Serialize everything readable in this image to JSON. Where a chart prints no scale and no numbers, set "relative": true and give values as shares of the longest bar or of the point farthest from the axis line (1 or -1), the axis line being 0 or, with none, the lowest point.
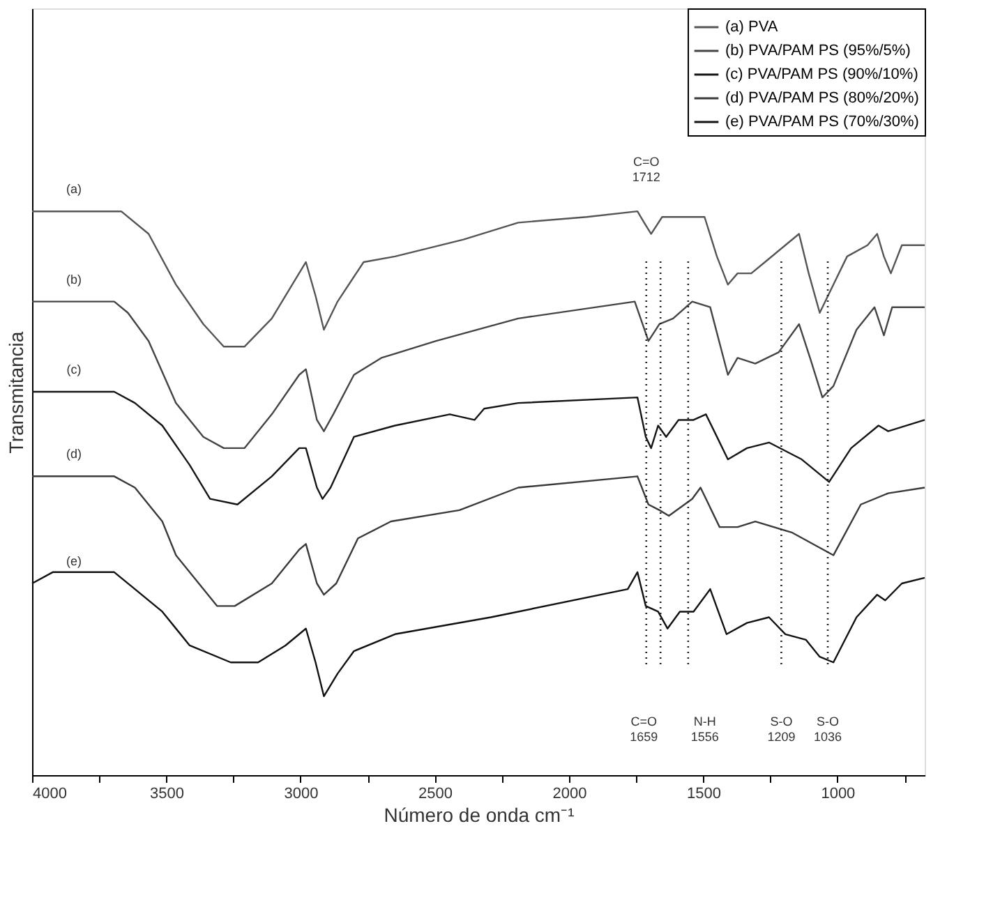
{
  "chart_data": {
    "type": "line",
    "relative": true,
    "xlabel": "Número de onda cm⁻¹",
    "ylabel": "Transmitancia",
    "xlim": [
      4000,
      675
    ],
    "xticks": [
      4000,
      {
        "value": 3750,
        "label": null
      },
      3500,
      {
        "value": 3250,
        "label": null
      },
      3000,
      {
        "value": 2750,
        "label": null
      },
      2500,
      {
        "value": 2250,
        "label": null
      },
      2000,
      {
        "value": 1750,
        "label": null
      },
      1500,
      {
        "value": 1250,
        "label": null
      },
      1000,
      {
        "value": 750,
        "label": null
      }
    ],
    "grid": false,
    "legend": "top right",
    "marker": "none",
    "line_style": "solid",
    "series": [
      {
        "name": "(a) PVA",
        "color": "#555555",
        "x": [
          4000,
          3668,
          3566,
          3464,
          3362,
          3286,
          3209,
          3107,
          3031,
          2980,
          2944,
          2913,
          2862,
          2765,
          2648,
          2393,
          2189,
          1934,
          1745,
          1720,
          1694,
          1653,
          1526,
          1495,
          1449,
          1408,
          1372,
          1321,
          1270,
          1194,
          1143,
          1107,
          1066,
          1015,
          964,
          888,
          852,
          827,
          801,
          760,
          675
        ],
        "values": [
          1.0,
          1.0,
          0.96,
          0.87,
          0.8,
          0.76,
          0.76,
          0.81,
          0.87,
          0.91,
          0.85,
          0.79,
          0.84,
          0.91,
          0.92,
          0.95,
          0.98,
          0.99,
          1.0,
          0.98,
          0.96,
          0.99,
          0.99,
          0.99,
          0.92,
          0.87,
          0.89,
          0.89,
          0.91,
          0.94,
          0.96,
          0.89,
          0.82,
          0.87,
          0.92,
          0.94,
          0.96,
          0.92,
          0.89,
          0.94,
          0.94
        ]
      },
      {
        "name": "(b) PVA/PAM PS (95%/5%)",
        "color": "#444444",
        "x": [
          4000,
          3694,
          3643,
          3566,
          3464,
          3362,
          3286,
          3209,
          3107,
          3005,
          2980,
          2939,
          2913,
          2878,
          2801,
          2699,
          2495,
          2189,
          1755,
          1704,
          1663,
          1612,
          1541,
          1474,
          1408,
          1372,
          1306,
          1219,
          1143,
          1102,
          1056,
          1015,
          929,
          862,
          827,
          796,
          675
        ],
        "values": [
          0.84,
          0.84,
          0.82,
          0.77,
          0.66,
          0.6,
          0.58,
          0.58,
          0.64,
          0.71,
          0.72,
          0.63,
          0.61,
          0.64,
          0.71,
          0.74,
          0.77,
          0.81,
          0.84,
          0.77,
          0.8,
          0.81,
          0.84,
          0.83,
          0.71,
          0.74,
          0.73,
          0.75,
          0.8,
          0.74,
          0.67,
          0.69,
          0.79,
          0.83,
          0.78,
          0.83,
          0.83
        ]
      },
      {
        "name": "(c) PVA/PAM PS (90%/10%)",
        "color": "#151515",
        "x": [
          4000,
          3857,
          3694,
          3617,
          3515,
          3413,
          3337,
          3235,
          3107,
          3005,
          2980,
          2939,
          2918,
          2888,
          2801,
          2648,
          2444,
          2352,
          2316,
          2189,
          1745,
          1714,
          1694,
          1668,
          1638,
          1592,
          1536,
          1490,
          1459,
          1408,
          1337,
          1255,
          1133,
          1031,
          949,
          847,
          811,
          675
        ],
        "values": [
          0.68,
          0.68,
          0.68,
          0.66,
          0.62,
          0.55,
          0.49,
          0.48,
          0.53,
          0.58,
          0.58,
          0.51,
          0.49,
          0.51,
          0.6,
          0.62,
          0.64,
          0.63,
          0.65,
          0.66,
          0.67,
          0.6,
          0.58,
          0.62,
          0.6,
          0.63,
          0.63,
          0.64,
          0.61,
          0.56,
          0.58,
          0.59,
          0.56,
          0.52,
          0.58,
          0.62,
          0.61,
          0.63
        ]
      },
      {
        "name": "(d) PVA/PAM PS (80%/20%)",
        "color": "#3a3a3a",
        "x": [
          4000,
          3694,
          3617,
          3515,
          3464,
          3311,
          3245,
          3107,
          3005,
          2980,
          2939,
          2913,
          2867,
          2786,
          2663,
          2408,
          2189,
          1745,
          1704,
          1663,
          1628,
          1541,
          1510,
          1439,
          1372,
          1306,
          1168,
          1015,
          913,
          811,
          675
        ],
        "values": [
          0.53,
          0.53,
          0.51,
          0.45,
          0.39,
          0.3,
          0.3,
          0.34,
          0.4,
          0.41,
          0.34,
          0.32,
          0.34,
          0.42,
          0.45,
          0.47,
          0.51,
          0.53,
          0.48,
          0.47,
          0.46,
          0.49,
          0.51,
          0.44,
          0.44,
          0.45,
          0.43,
          0.39,
          0.48,
          0.5,
          0.51
        ]
      },
      {
        "name": "(e) PVA/PAM PS (70%/30%)",
        "color": "#111111",
        "x": [
          4000,
          3923,
          3694,
          3617,
          3515,
          3413,
          3260,
          3158,
          3056,
          2980,
          2944,
          2913,
          2862,
          2801,
          2648,
          2291,
          1781,
          1745,
          1714,
          1668,
          1633,
          1587,
          1536,
          1474,
          1413,
          1337,
          1255,
          1194,
          1117,
          1066,
          1015,
          929,
          852,
          822,
          760,
          675
        ],
        "values": [
          0.34,
          0.36,
          0.36,
          0.33,
          0.29,
          0.23,
          0.2,
          0.2,
          0.23,
          0.26,
          0.2,
          0.14,
          0.18,
          0.22,
          0.25,
          0.28,
          0.33,
          0.36,
          0.3,
          0.29,
          0.26,
          0.29,
          0.29,
          0.33,
          0.25,
          0.27,
          0.28,
          0.25,
          0.24,
          0.21,
          0.2,
          0.28,
          0.32,
          0.31,
          0.34,
          0.35
        ]
      }
    ],
    "ref_lines": [
      {
        "axis": "x",
        "value": 1712,
        "line_style": "dotted",
        "color": "#222222"
      },
      {
        "axis": "x",
        "value": 1659,
        "line_style": "dotted",
        "color": "#222222"
      },
      {
        "axis": "x",
        "value": 1556,
        "line_style": "dotted",
        "color": "#222222"
      },
      {
        "axis": "x",
        "value": 1209,
        "line_style": "dotted",
        "color": "#222222"
      },
      {
        "axis": "x",
        "value": 1036,
        "line_style": "dotted",
        "color": "#222222"
      }
    ],
    "annotations": [
      "(a)",
      "(b)",
      "(c)",
      "(d)",
      "(e)",
      "C=O 1712",
      "C=O 1659",
      "N-H 1556",
      "S-O 1209",
      "S-O 1036"
    ]
  }
}
